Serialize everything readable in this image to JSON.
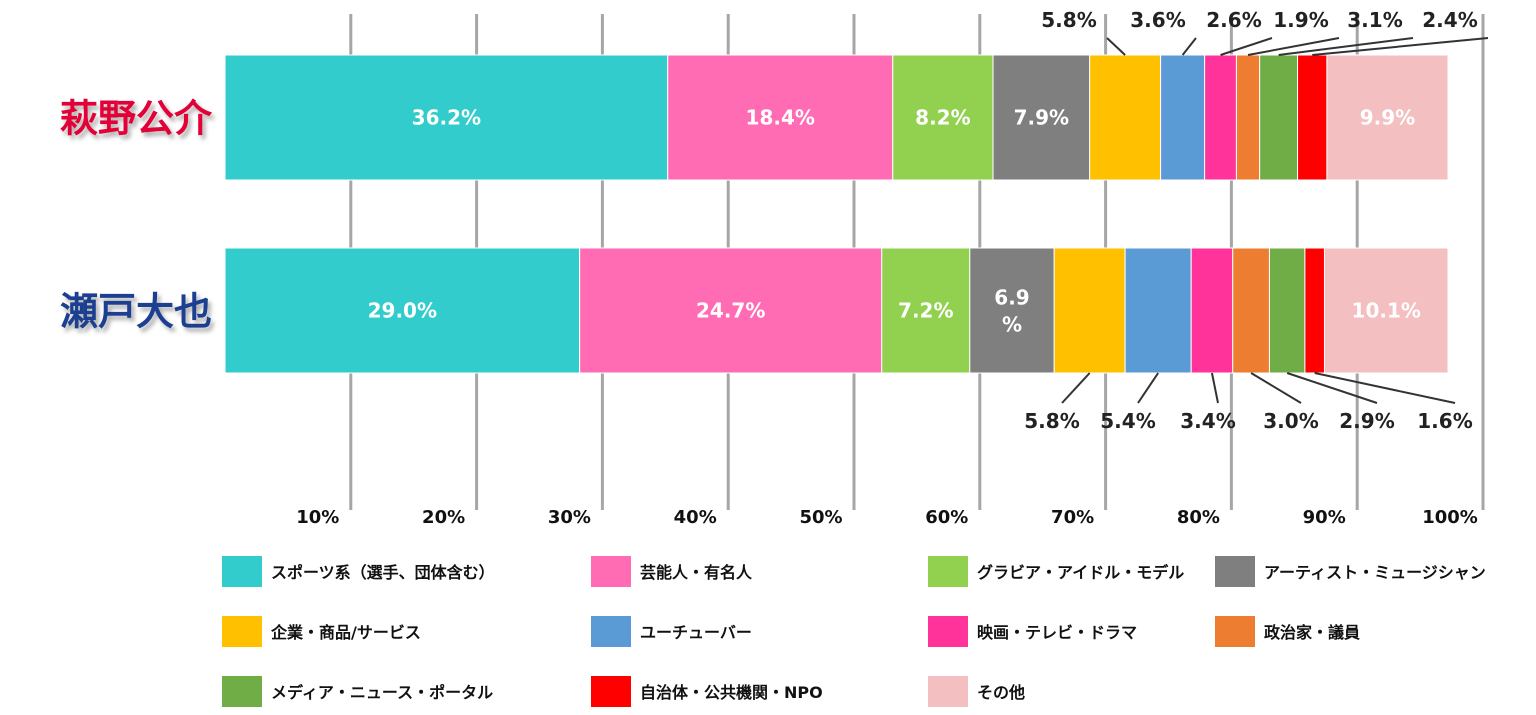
{
  "chart_data": {
    "type": "bar",
    "orientation": "horizontal",
    "stacked": true,
    "categories": [
      {
        "name": "萩野公介",
        "color": "#e30039"
      },
      {
        "name": "瀬戸大也",
        "color": "#1b3f91"
      }
    ],
    "series": [
      {
        "name": "スポーツ系（選手、団体含む）",
        "color": "#33cccc",
        "values": [
          36.2,
          29.0
        ],
        "labels": [
          "36.2%",
          "29.0%"
        ]
      },
      {
        "name": "芸能人・有名人",
        "color": "#ff6cb4",
        "values": [
          18.4,
          24.7
        ],
        "labels": [
          "18.4%",
          "24.7%"
        ]
      },
      {
        "name": "グラビア・アイドル・モデル",
        "color": "#92d050",
        "values": [
          8.2,
          7.2
        ],
        "labels": [
          "8.2%",
          "7.2%"
        ]
      },
      {
        "name": "アーティスト・ミュージシャン",
        "color": "#7f7f7f",
        "values": [
          7.9,
          6.9
        ],
        "labels": [
          "7.9%",
          "6.9\n%"
        ]
      },
      {
        "name": "企業・商品/サービス",
        "color": "#ffc000",
        "values": [
          5.8,
          5.8
        ],
        "labels": [
          "5.8%",
          "5.8%"
        ]
      },
      {
        "name": "ユーチューバー",
        "color": "#5b9bd5",
        "values": [
          3.6,
          5.4
        ],
        "labels": [
          "3.6%",
          "5.4%"
        ]
      },
      {
        "name": "映画・テレビ・ドラマ",
        "color": "#ff3399",
        "values": [
          2.6,
          3.4
        ],
        "labels": [
          "2.6%",
          "3.4%"
        ]
      },
      {
        "name": "政治家・議員",
        "color": "#ed7d31",
        "values": [
          1.9,
          3.0
        ],
        "labels": [
          "1.9%",
          "3.0%"
        ]
      },
      {
        "name": "メディア・ニュース・ポータル",
        "color": "#70ad47",
        "values": [
          3.1,
          2.9
        ],
        "labels": [
          "3.1%",
          "2.9%"
        ]
      },
      {
        "name": "自治体・公共機関・NPO",
        "color": "#ff0000",
        "values": [
          2.4,
          1.6
        ],
        "labels": [
          "2.4%",
          "1.6%"
        ]
      },
      {
        "name": "その他",
        "color": "#f4bfc0",
        "values": [
          9.9,
          10.1
        ],
        "labels": [
          "9.9%",
          "10.1%"
        ]
      }
    ],
    "xlim": [
      0,
      100
    ],
    "ticks": [
      {
        "value": 10,
        "label": "10%"
      },
      {
        "value": 20,
        "label": "20%"
      },
      {
        "value": 30,
        "label": "30%"
      },
      {
        "value": 40,
        "label": "40%"
      },
      {
        "value": 50,
        "label": "50%"
      },
      {
        "value": 60,
        "label": "60%"
      },
      {
        "value": 70,
        "label": "70%"
      },
      {
        "value": 80,
        "label": "80%"
      },
      {
        "value": 90,
        "label": "90%"
      },
      {
        "value": 100,
        "label": "100%"
      }
    ],
    "grid": true,
    "legend_position": "bottom",
    "title": "",
    "xlabel": "",
    "ylabel": ""
  }
}
